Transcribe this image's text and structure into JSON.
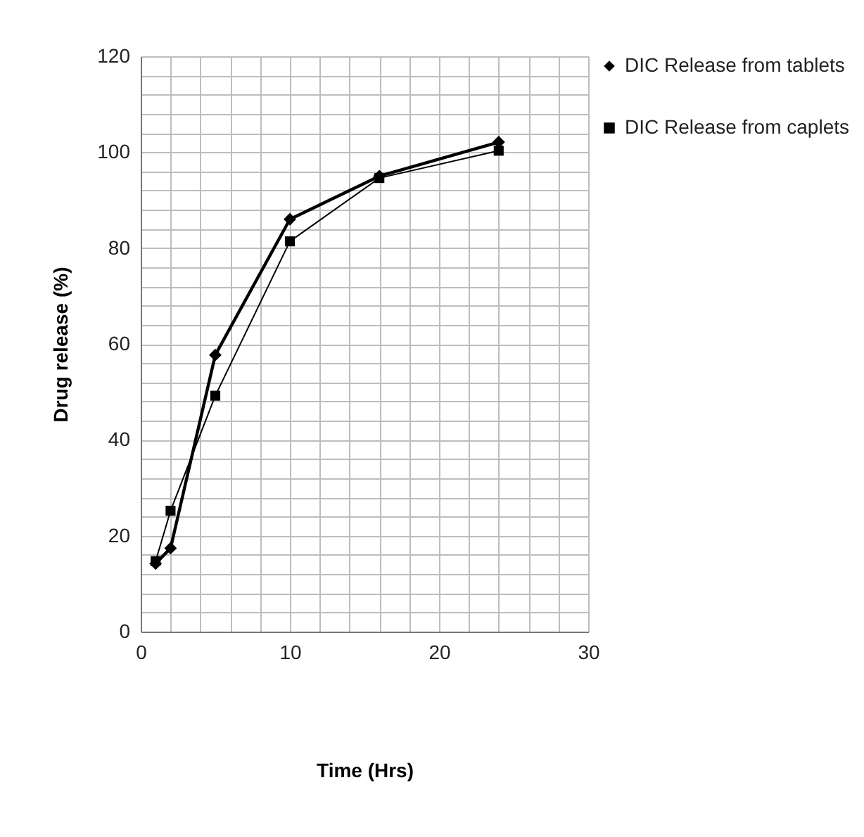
{
  "chart_data": {
    "type": "line",
    "xlabel": "Time (Hrs)",
    "ylabel": "Drug release (%)",
    "x": [
      1,
      2,
      5,
      10,
      16,
      24
    ],
    "xlim": [
      0,
      30
    ],
    "xticks": [
      0,
      {
        "value": 2,
        "label": null
      },
      {
        "value": 4,
        "label": null
      },
      {
        "value": 6,
        "label": null
      },
      {
        "value": 8,
        "label": null
      },
      10,
      {
        "value": 12,
        "label": null
      },
      {
        "value": 14,
        "label": null
      },
      {
        "value": 16,
        "label": null
      },
      {
        "value": 18,
        "label": null
      },
      20,
      {
        "value": 22,
        "label": null
      },
      {
        "value": 24,
        "label": null
      },
      {
        "value": 26,
        "label": null
      },
      {
        "value": 28,
        "label": null
      },
      30
    ],
    "ylim": [
      0,
      120
    ],
    "yticks": [
      0,
      {
        "value": 4,
        "label": null
      },
      {
        "value": 8,
        "label": null
      },
      {
        "value": 12,
        "label": null
      },
      {
        "value": 16,
        "label": null
      },
      20,
      {
        "value": 24,
        "label": null
      },
      {
        "value": 28,
        "label": null
      },
      {
        "value": 32,
        "label": null
      },
      {
        "value": 36,
        "label": null
      },
      40,
      {
        "value": 44,
        "label": null
      },
      {
        "value": 48,
        "label": null
      },
      {
        "value": 52,
        "label": null
      },
      {
        "value": 56,
        "label": null
      },
      60,
      {
        "value": 64,
        "label": null
      },
      {
        "value": 68,
        "label": null
      },
      {
        "value": 72,
        "label": null
      },
      {
        "value": 76,
        "label": null
      },
      80,
      {
        "value": 84,
        "label": null
      },
      {
        "value": 88,
        "label": null
      },
      {
        "value": 92,
        "label": null
      },
      {
        "value": 96,
        "label": null
      },
      100,
      {
        "value": 104,
        "label": null
      },
      {
        "value": 108,
        "label": null
      },
      {
        "value": 112,
        "label": null
      },
      {
        "value": 116,
        "label": null
      },
      120
    ],
    "grid": true,
    "legend": "right",
    "series": [
      {
        "name": "DIC Release from tablets",
        "color": "#000000",
        "marker": "diamond",
        "values": [
          14.2,
          17.4,
          57.7,
          86,
          95,
          102.1
        ]
      },
      {
        "name": "DIC Release from caplets",
        "color": "#000000",
        "marker": "square",
        "values": [
          14.7,
          25.2,
          49.2,
          81.4,
          94.6,
          100.3
        ]
      }
    ]
  }
}
